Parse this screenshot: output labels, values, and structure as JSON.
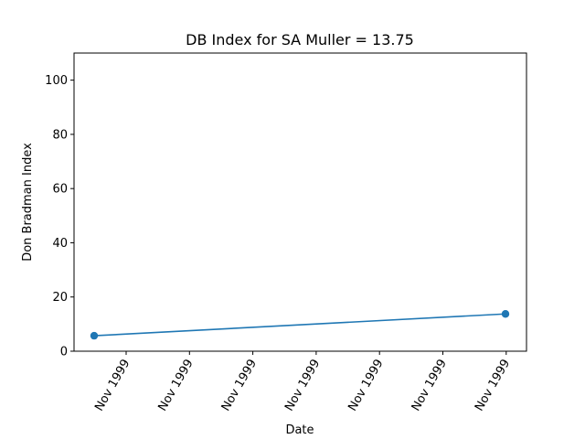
{
  "chart_data": {
    "type": "line",
    "title": "DB Index for SA Muller = 13.75",
    "xlabel": "Date",
    "ylabel": "Don Bradman Index",
    "x_tick_labels": [
      "Nov 1999",
      "Nov 1999",
      "Nov 1999",
      "Nov 1999",
      "Nov 1999",
      "Nov 1999",
      "Nov 1999"
    ],
    "y_ticks": [
      0,
      20,
      40,
      60,
      80,
      100
    ],
    "ylim": [
      0,
      110
    ],
    "grid": false,
    "series": [
      {
        "color": "#1f77b4",
        "marker": "circle",
        "points": [
          {
            "x": "1999-11",
            "y": 5.7
          },
          {
            "x": "1999-11",
            "y": 13.75
          }
        ]
      }
    ]
  }
}
